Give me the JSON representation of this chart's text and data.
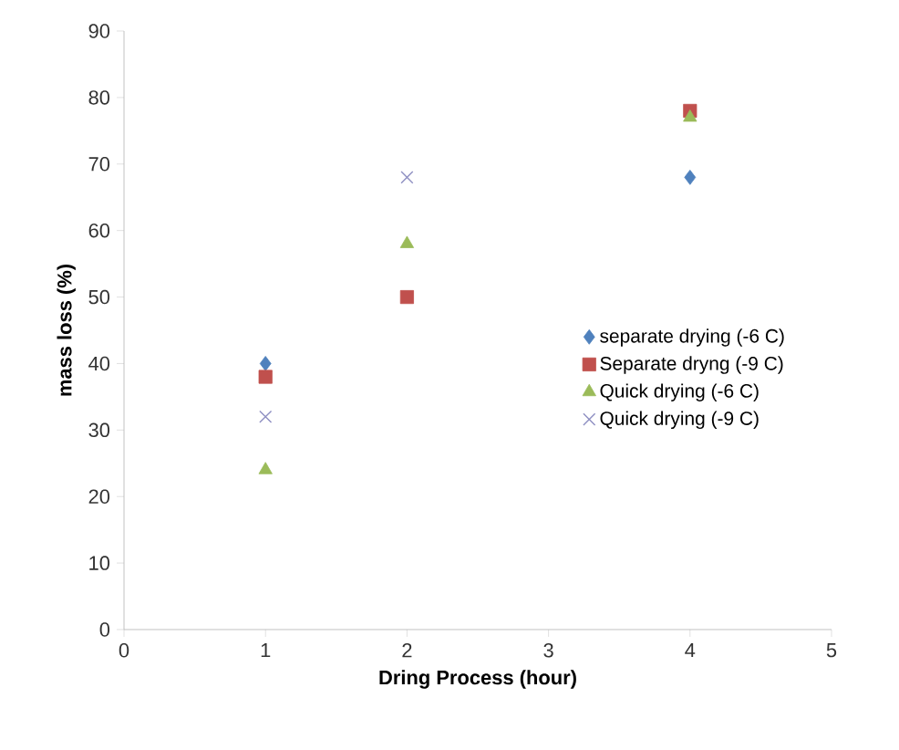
{
  "chart_data": {
    "type": "scatter",
    "xlabel": "Dring Process (hour)",
    "ylabel": "mass loss (%)",
    "xlim": [
      0,
      5
    ],
    "ylim": [
      0,
      90
    ],
    "xticks": [
      0,
      1,
      2,
      3,
      4,
      5
    ],
    "yticks": [
      0,
      10,
      20,
      30,
      40,
      50,
      60,
      70,
      80,
      90
    ],
    "legend": "right",
    "series": [
      {
        "name": "separate drying (-6 C)",
        "color": "#4f81bd",
        "marker": "diamond",
        "x": [
          1,
          4
        ],
        "values": [
          40,
          68
        ]
      },
      {
        "name": "Separate dryng (-9 C)",
        "color": "#c0504d",
        "marker": "square",
        "x": [
          1,
          2,
          4
        ],
        "values": [
          38,
          50,
          78
        ]
      },
      {
        "name": "Quick drying (-6 C)",
        "color": "#9bbb59",
        "marker": "triangle",
        "x": [
          1,
          2,
          4
        ],
        "values": [
          24,
          58,
          77
        ]
      },
      {
        "name": "Quick drying (-9 C)",
        "color": "#8e8fc2",
        "marker": "cross",
        "x": [
          1,
          2
        ],
        "values": [
          32,
          68
        ]
      }
    ]
  }
}
